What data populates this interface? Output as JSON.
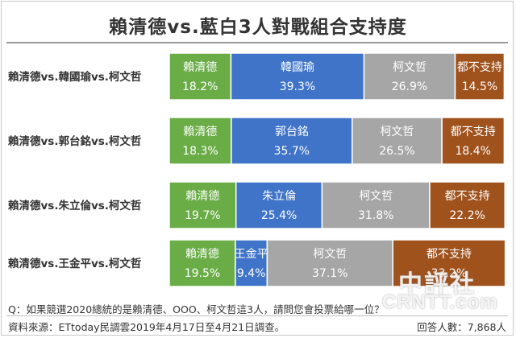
{
  "chart_data": {
    "type": "bar",
    "stacked": true,
    "orientation": "horizontal",
    "title": "賴清德vs.藍白3人對戰組合支持度",
    "xlim": [
      0,
      100
    ],
    "unit": "%",
    "categories": [
      "賴清德vs.韓國瑜vs.柯文哲",
      "賴清德vs.郭台銘vs.柯文哲",
      "賴清德vs.朱立倫vs.柯文哲",
      "賴清德vs.王金平vs.柯文哲"
    ],
    "rows": [
      {
        "segments": [
          {
            "label": "賴清德",
            "value": 18.2,
            "display": "18.2%",
            "color": "#6aad46"
          },
          {
            "label": "韓國瑜",
            "value": 39.3,
            "display": "39.3%",
            "color": "#3f74c9"
          },
          {
            "label": "柯文哲",
            "value": 26.9,
            "display": "26.9%",
            "color": "#a6a6a6"
          },
          {
            "label": "都不支持",
            "value": 14.5,
            "display": "14.5%",
            "color": "#a0521d"
          }
        ]
      },
      {
        "segments": [
          {
            "label": "賴清德",
            "value": 18.3,
            "display": "18.3%",
            "color": "#6aad46"
          },
          {
            "label": "郭台銘",
            "value": 35.7,
            "display": "35.7%",
            "color": "#3f74c9"
          },
          {
            "label": "柯文哲",
            "value": 26.5,
            "display": "26.5%",
            "color": "#a6a6a6"
          },
          {
            "label": "都不支持",
            "value": 18.4,
            "display": "18.4%",
            "color": "#a0521d"
          }
        ]
      },
      {
        "segments": [
          {
            "label": "賴清德",
            "value": 19.7,
            "display": "19.7%",
            "color": "#6aad46"
          },
          {
            "label": "朱立倫",
            "value": 25.4,
            "display": "25.4%",
            "color": "#3f74c9"
          },
          {
            "label": "柯文哲",
            "value": 31.8,
            "display": "31.8%",
            "color": "#a6a6a6"
          },
          {
            "label": "都不支持",
            "value": 22.2,
            "display": "22.2%",
            "color": "#a0521d"
          }
        ]
      },
      {
        "segments": [
          {
            "label": "賴清德",
            "value": 19.5,
            "display": "19.5%",
            "color": "#6aad46"
          },
          {
            "label": "王金平",
            "value": 9.4,
            "display": "9.4%",
            "color": "#3f74c9"
          },
          {
            "label": "柯文哲",
            "value": 37.1,
            "display": "37.1%",
            "color": "#a6a6a6"
          },
          {
            "label": "都不支持",
            "value": 33.2,
            "display": "33.2%",
            "color": "#a0521d"
          }
        ]
      }
    ]
  },
  "footer": {
    "question": "Q：如果競選2020總統的是賴清德、OOO、柯文哲這3人，請問您會投票給哪一位？",
    "source": "資料來源：ETtoday民調雲2019年4月17日至4月21日調查。",
    "respondents": "回答人數：7,868人"
  },
  "watermark": {
    "text_cn": "中評社",
    "text_en": "CRNTT.com"
  }
}
